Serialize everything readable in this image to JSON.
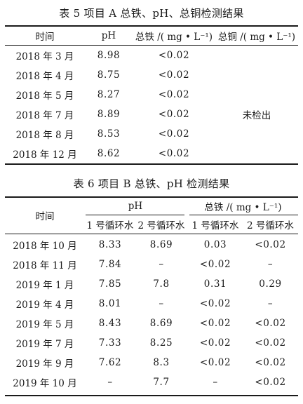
{
  "table5": {
    "caption": "表 5   项目 A 总铁、pH、总铜检测结果",
    "headers": [
      "时间",
      "pH",
      "总铁 /( mg • L⁻¹)",
      "总铜 /( mg • L⁻¹)"
    ],
    "rows": [
      [
        "2018 年 3 月",
        "8.98",
        "<0.02"
      ],
      [
        "2018 年 4 月",
        "8.75",
        "<0.02"
      ],
      [
        "2018 年 5 月",
        "8.27",
        "<0.02"
      ],
      [
        "2018 年 7 月",
        "8.89",
        "<0.02"
      ],
      [
        "2018 年 8 月",
        "8.53",
        "<0.02"
      ],
      [
        "2018 年 12 月",
        "8.62",
        "<0.02"
      ]
    ],
    "copper_merged": "未检出"
  },
  "table6": {
    "caption": "表 6   项目 B 总铁、pH 检测结果",
    "header_time": "时间",
    "group_ph": "pH",
    "group_iron": "总铁 /( mg • L⁻¹)",
    "subheaders": [
      "1 号循环水",
      "2 号循环水",
      "1 号循环水",
      "2 号循环水"
    ],
    "rows": [
      [
        "2018 年 10 月",
        "8.33",
        "8.69",
        "0.03",
        "<0.02"
      ],
      [
        "2018 年 11 月",
        "7.84",
        "–",
        "<0.02",
        "–"
      ],
      [
        "2019 年 1 月",
        "7.85",
        "7.8",
        "0.31",
        "0.29"
      ],
      [
        "2019 年 4 月",
        "8.01",
        "–",
        "<0.02",
        "–"
      ],
      [
        "2019 年 5 月",
        "8.43",
        "8.69",
        "<0.02",
        "<0.02"
      ],
      [
        "2019 年 7 月",
        "7.33",
        "8.25",
        "<0.02",
        "<0.02"
      ],
      [
        "2019 年 9 月",
        "7.62",
        "8.3",
        "<0.02",
        "<0.02"
      ],
      [
        "2019 年 10 月",
        "–",
        "7.7",
        "–",
        "<0.02"
      ]
    ]
  }
}
